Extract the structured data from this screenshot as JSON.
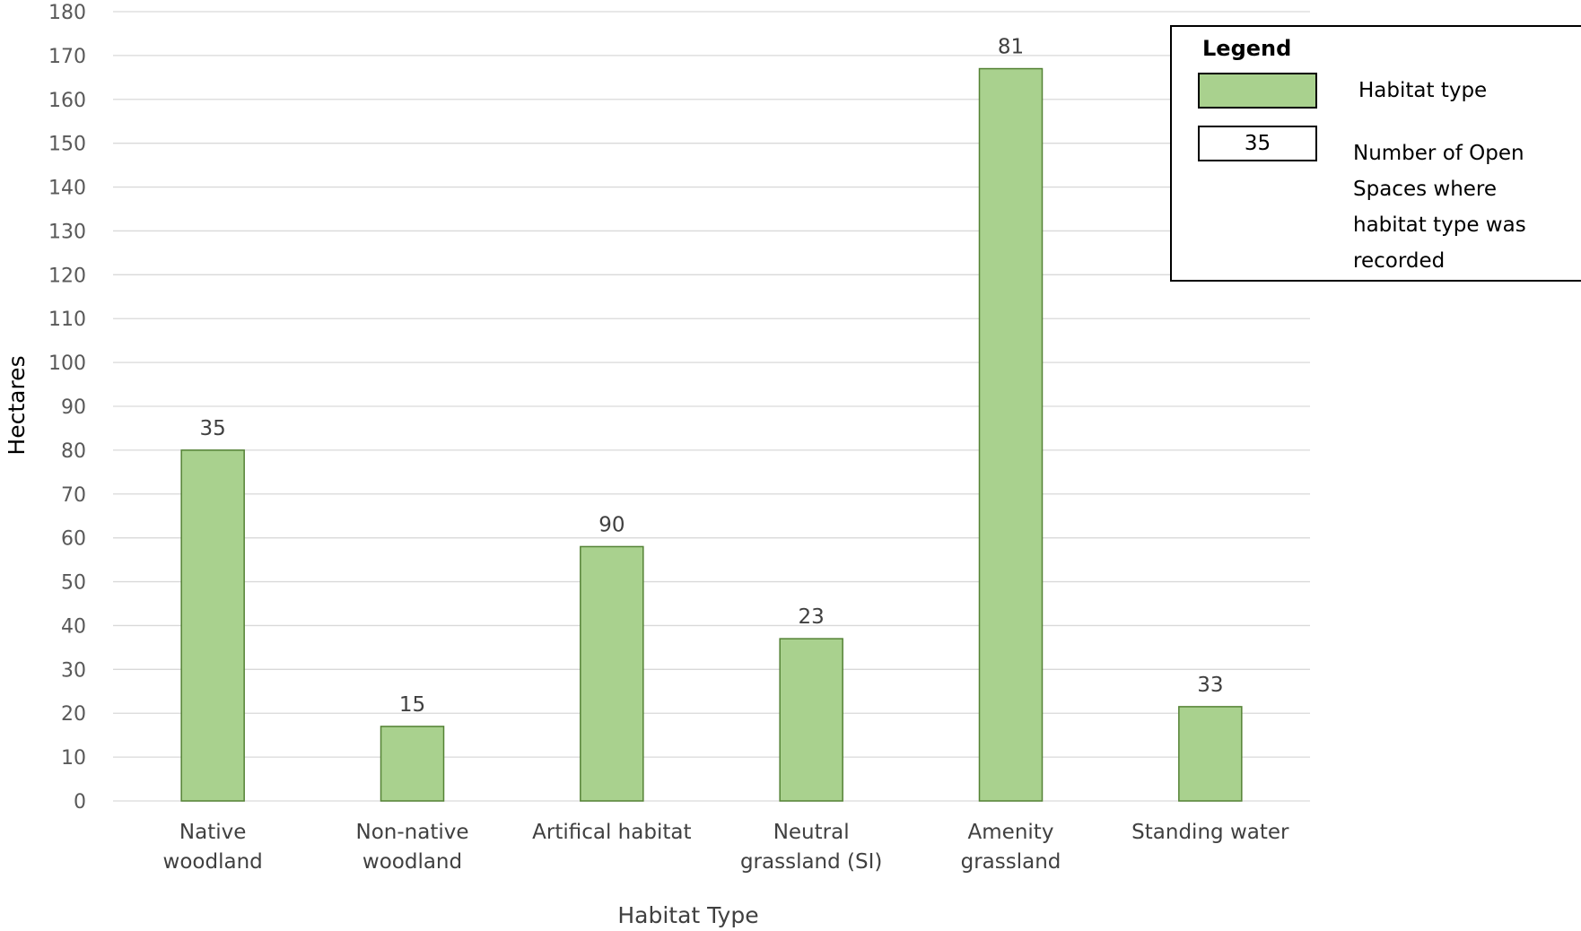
{
  "chart_data": {
    "type": "bar",
    "categories": [
      [
        "Native",
        "woodland"
      ],
      [
        "Non-native",
        "woodland"
      ],
      [
        "Artifical habitat"
      ],
      [
        "Neutral",
        "grassland (SI)"
      ],
      [
        "Amenity",
        "grassland"
      ],
      [
        "Standing water"
      ]
    ],
    "values": [
      80,
      17,
      58,
      37,
      167,
      21.5
    ],
    "data_labels": [
      "35",
      "15",
      "90",
      "23",
      "81",
      "33"
    ],
    "xlabel": "Habitat Type",
    "ylabel": "Hectares",
    "ylim": [
      0,
      180
    ],
    "yticks": [
      0,
      10,
      20,
      30,
      40,
      50,
      60,
      70,
      80,
      90,
      100,
      110,
      120,
      130,
      140,
      150,
      160,
      170,
      180
    ],
    "grid": true,
    "bar_color": "#a9d18e",
    "bar_edge_color": "#548235"
  },
  "legend": {
    "title": "Legend",
    "item_habitat_label": "Habitat type",
    "item_count_sample": "35",
    "item_count_label": "Number of Open Spaces where habitat type was recorded"
  }
}
